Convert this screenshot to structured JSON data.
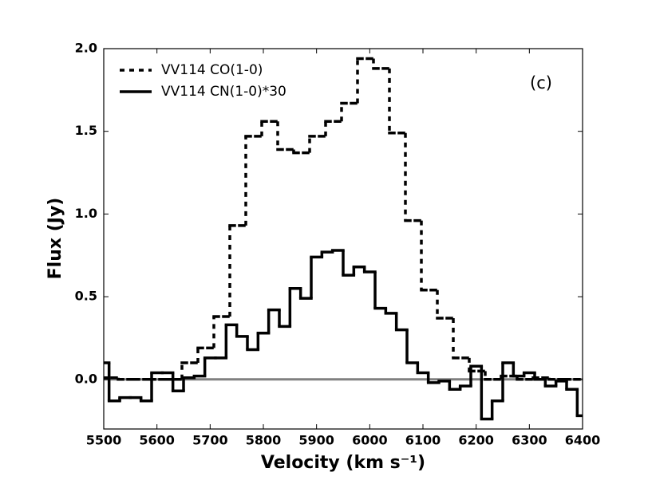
{
  "chart_data": {
    "type": "step",
    "xlabel": "Velocity (km s⁻¹)",
    "ylabel": "Flux (Jy)",
    "annotation": "(c)",
    "legend": "upper left",
    "xlim": [
      5500,
      6400
    ],
    "ylim": [
      -0.3,
      2.0
    ],
    "xticks": [
      5500,
      5600,
      5700,
      5800,
      5900,
      6000,
      6100,
      6200,
      6300,
      6400
    ],
    "yticks": [
      {
        "value": 0,
        "label": "0.0"
      },
      0.5,
      {
        "value": 1,
        "label": "1.0"
      },
      1.5,
      {
        "value": 2,
        "label": "2.0"
      }
    ],
    "zero_line_color": "#808080",
    "series": [
      {
        "name": "VV114 CO(1-0)",
        "color": "#000000",
        "style": "dashed",
        "x": [
          5512,
          5542,
          5572,
          5602,
          5632,
          5662,
          5692,
          5722,
          5752,
          5782,
          5812,
          5842,
          5872,
          5902,
          5932,
          5962,
          5992,
          6022,
          6052,
          6082,
          6112,
          6142,
          6172,
          6202,
          6232,
          6262,
          6292,
          6322,
          6352,
          6382
        ],
        "values": [
          0.01,
          0.0,
          0.0,
          0.0,
          0.0,
          0.1,
          0.19,
          0.38,
          0.93,
          1.47,
          1.56,
          1.39,
          1.37,
          1.47,
          1.56,
          1.67,
          1.94,
          1.88,
          1.49,
          0.96,
          0.54,
          0.37,
          0.13,
          0.05,
          0.0,
          0.02,
          0.0,
          0.01,
          0.0,
          0.0
        ]
      },
      {
        "name": "VV114 CN(1-0)*30",
        "color": "#000000",
        "style": "solid",
        "x": [
          5500,
          5520,
          5540,
          5560,
          5580,
          5600,
          5620,
          5640,
          5660,
          5680,
          5700,
          5720,
          5740,
          5760,
          5780,
          5800,
          5820,
          5840,
          5860,
          5880,
          5900,
          5920,
          5940,
          5960,
          5980,
          6000,
          6020,
          6040,
          6060,
          6080,
          6100,
          6120,
          6140,
          6160,
          6180,
          6200,
          6220,
          6240,
          6260,
          6280,
          6300,
          6320,
          6340,
          6360,
          6380,
          6400
        ],
        "values": [
          0.1,
          -0.13,
          -0.11,
          -0.11,
          -0.13,
          0.04,
          0.04,
          -0.07,
          0.01,
          0.02,
          0.13,
          0.13,
          0.33,
          0.26,
          0.18,
          0.28,
          0.42,
          0.32,
          0.55,
          0.49,
          0.74,
          0.77,
          0.78,
          0.63,
          0.68,
          0.65,
          0.43,
          0.4,
          0.3,
          0.1,
          0.04,
          -0.02,
          -0.01,
          -0.06,
          -0.04,
          0.08,
          -0.24,
          -0.13,
          0.1,
          0.02,
          0.04,
          0.0,
          -0.04,
          -0.01,
          -0.06,
          -0.22
        ]
      }
    ]
  }
}
